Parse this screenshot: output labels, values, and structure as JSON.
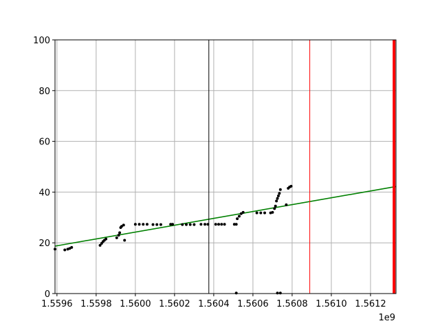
{
  "chart_data": {
    "type": "scatter",
    "title": "",
    "xlabel": "",
    "ylabel": "",
    "x_offset_label": "1e9",
    "xlim": [
      1559590000,
      1561330000
    ],
    "ylim": [
      0,
      100
    ],
    "grid": true,
    "xticks": [
      1559600000,
      1559800000,
      1560000000,
      1560200000,
      1560400000,
      1560600000,
      1560800000,
      1561000000,
      1561200000
    ],
    "xtick_labels": [
      "1.5596",
      "1.5598",
      "1.5600",
      "1.5602",
      "1.5604",
      "1.5606",
      "1.5608",
      "1.5610",
      "1.5612"
    ],
    "yticks": [
      0,
      20,
      40,
      60,
      80,
      100
    ],
    "ytick_labels": [
      "0",
      "20",
      "40",
      "60",
      "80",
      "100"
    ],
    "colors": {
      "points": "#000000",
      "trend": "#008000",
      "marker_black": "#000000",
      "marker_red": "#ff0000",
      "grid": "#b0b0b0"
    },
    "series": [
      {
        "kind": "points",
        "points": [
          [
            1559590000,
            17.5
          ],
          [
            1559640000,
            17.2
          ],
          [
            1559655000,
            17.5
          ],
          [
            1559665000,
            17.8
          ],
          [
            1559675000,
            18.2
          ],
          [
            1559820000,
            19.0
          ],
          [
            1559828000,
            19.8
          ],
          [
            1559835000,
            20.5
          ],
          [
            1559842000,
            21.0
          ],
          [
            1559850000,
            21.5
          ],
          [
            1559905000,
            22.0
          ],
          [
            1559915000,
            23.0
          ],
          [
            1559920000,
            24.0
          ],
          [
            1559925000,
            26.0
          ],
          [
            1559930000,
            26.5
          ],
          [
            1559940000,
            27.0
          ],
          [
            1559945000,
            21.0
          ],
          [
            1560000000,
            27.3
          ],
          [
            1560020000,
            27.3
          ],
          [
            1560040000,
            27.3
          ],
          [
            1560060000,
            27.3
          ],
          [
            1560090000,
            27.2
          ],
          [
            1560110000,
            27.2
          ],
          [
            1560130000,
            27.2
          ],
          [
            1560180000,
            27.3
          ],
          [
            1560190000,
            27.3
          ],
          [
            1560240000,
            27.2
          ],
          [
            1560260000,
            27.2
          ],
          [
            1560280000,
            27.2
          ],
          [
            1560300000,
            27.2
          ],
          [
            1560335000,
            27.3
          ],
          [
            1560355000,
            27.3
          ],
          [
            1560370000,
            27.3
          ],
          [
            1560410000,
            27.3
          ],
          [
            1560425000,
            27.3
          ],
          [
            1560440000,
            27.3
          ],
          [
            1560455000,
            27.3
          ],
          [
            1560505000,
            27.3
          ],
          [
            1560515000,
            27.3
          ],
          [
            1560520000,
            29.5
          ],
          [
            1560530000,
            30.5
          ],
          [
            1560540000,
            31.5
          ],
          [
            1560550000,
            32.0
          ],
          [
            1560515000,
            0.2
          ],
          [
            1560620000,
            31.8
          ],
          [
            1560640000,
            31.8
          ],
          [
            1560660000,
            31.8
          ],
          [
            1560690000,
            31.8
          ],
          [
            1560700000,
            32.0
          ],
          [
            1560710000,
            33.5
          ],
          [
            1560715000,
            34.5
          ],
          [
            1560720000,
            36.5
          ],
          [
            1560725000,
            37.5
          ],
          [
            1560730000,
            38.5
          ],
          [
            1560735000,
            39.5
          ],
          [
            1560740000,
            41.0
          ],
          [
            1560725000,
            0.2
          ],
          [
            1560740000,
            0.2
          ],
          [
            1560770000,
            35.0
          ],
          [
            1560780000,
            41.5
          ],
          [
            1560787000,
            42.0
          ],
          [
            1560795000,
            42.3
          ]
        ]
      },
      {
        "kind": "trend_line",
        "points": [
          [
            1559590000,
            18.7
          ],
          [
            1561330000,
            42.2
          ]
        ]
      }
    ],
    "vertical_lines": [
      {
        "x": 1560375000,
        "color": "black"
      },
      {
        "x": 1560890000,
        "color": "red"
      },
      {
        "x": 1561320000,
        "color": "red",
        "thick": true
      }
    ]
  }
}
